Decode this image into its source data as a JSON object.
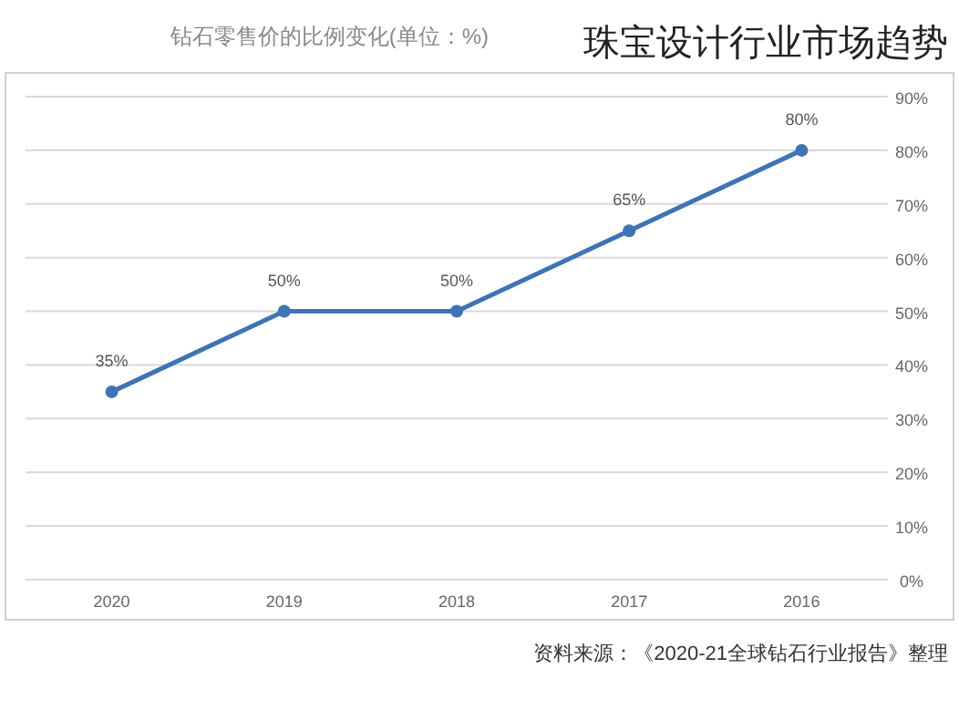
{
  "chart_data": {
    "type": "line",
    "title": "珠宝设计行业市场趋势",
    "subtitle": "钻石零售价的比例变化(单位：%)",
    "annotations": [
      "资料来源：《2020-21全球钻石行业报告》整理"
    ],
    "categories": [
      "2020",
      "2019",
      "2018",
      "2017",
      "2016"
    ],
    "series": [
      {
        "color": "#3f73b4",
        "values": [
          35,
          50,
          50,
          65,
          80
        ],
        "value_labels": [
          "35%",
          "50%",
          "50%",
          "65%",
          "80%"
        ]
      }
    ],
    "ylim": [
      0,
      90
    ],
    "yticks": [
      {
        "value": 0,
        "label": "0%"
      },
      {
        "value": 10,
        "label": "10%"
      },
      {
        "value": 20,
        "label": "20%"
      },
      {
        "value": 30,
        "label": "30%"
      },
      {
        "value": 40,
        "label": "40%"
      },
      {
        "value": 50,
        "label": "50%"
      },
      {
        "value": 60,
        "label": "60%"
      },
      {
        "value": 70,
        "label": "70%"
      },
      {
        "value": 80,
        "label": "80%"
      },
      {
        "value": 90,
        "label": "90%"
      }
    ],
    "grid": "y",
    "marker": "circle",
    "line_style": "solid"
  }
}
